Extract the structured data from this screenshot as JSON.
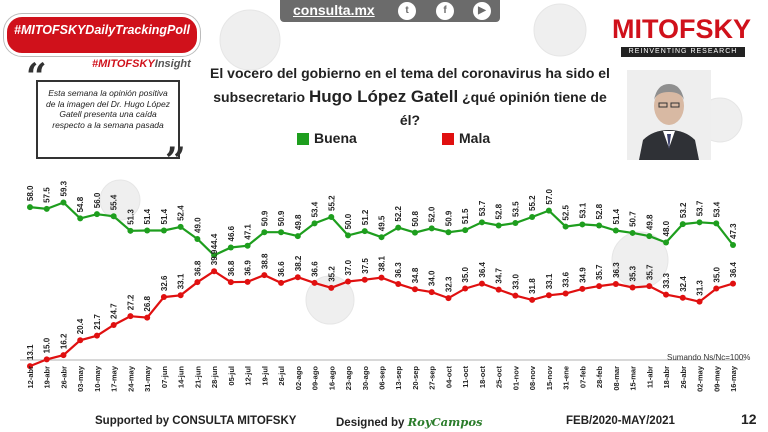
{
  "header": {
    "site": "consulta.mx",
    "social": [
      "twitter-icon",
      "facebook-icon",
      "youtube-icon"
    ],
    "tag": "#MITOFSKYDailyTrackingPoll",
    "insight_prefix": "#MITOFSKY",
    "insight_suffix": "Insight",
    "logo": "MITOFSKY",
    "logo_sub": "REINVENTING RESEARCH"
  },
  "quote": "Esta semana la opinión positiva de la imagen del Dr. Hugo López Gatell presenta una caída respecto a la semana pasada",
  "title_line1": "El vocero del gobierno en el tema del coronavirus ha sido el",
  "title_line2_prefix": "subsecretario ",
  "title_line2_name": "Hugo López Gatell",
  "title_line2_suffix": " ¿qué opinión tiene de él?",
  "note": "Sumando Ns/Nc=100%",
  "footer": {
    "supported": "Supported by   CONSULTA   MITOFSKY",
    "designed": "Designed by",
    "designer": "RoyCampos",
    "range": "FEB/2020-MAY/2021",
    "page": "12"
  },
  "colors": {
    "buena": "#1e9e1e",
    "mala": "#e01010",
    "brand": "#d0111b"
  },
  "chart_data": {
    "type": "line",
    "title": "",
    "xlabel": "",
    "ylabel": "",
    "grid": false,
    "legend_placement": "top-left",
    "x": [
      "12-abr",
      "19-abr",
      "26-abr",
      "03-may",
      "10-may",
      "17-may",
      "24-may",
      "31-may",
      "07-jun",
      "14-jun",
      "21-jun",
      "28-jun",
      "05-jul",
      "12-jul",
      "19-jul",
      "26-jul",
      "02-ago",
      "09-ago",
      "16-ago",
      "23-ago",
      "30-ago",
      "06-sep",
      "13-sep",
      "20-sep",
      "27-sep",
      "04-oct",
      "11-oct",
      "18-oct",
      "25-oct",
      "01-nov",
      "08-nov",
      "15-nov",
      "31-ene",
      "07-feb",
      "28-feb",
      "08-mar",
      "15-mar",
      "11-abr",
      "18-abr",
      "26-abr",
      "02-may",
      "09-may",
      "16-may"
    ],
    "series": [
      {
        "name": "Buena",
        "values": [
          58.0,
          57.5,
          59.3,
          54.8,
          56.0,
          55.4,
          51.3,
          51.4,
          51.4,
          52.4,
          49.0,
          44.4,
          46.6,
          47.1,
          50.9,
          50.9,
          49.8,
          53.4,
          55.2,
          50.0,
          51.2,
          49.5,
          52.2,
          50.8,
          52.0,
          50.9,
          51.5,
          53.7,
          52.8,
          53.5,
          55.2,
          57.0,
          52.5,
          53.1,
          52.8,
          51.4,
          50.7,
          49.8,
          48.0,
          53.2,
          53.7,
          53.4,
          47.3
        ]
      },
      {
        "name": "Mala",
        "values": [
          13.1,
          15.0,
          16.2,
          20.4,
          21.7,
          24.7,
          27.2,
          26.8,
          32.6,
          33.1,
          36.8,
          39.9,
          36.8,
          36.9,
          38.8,
          36.6,
          38.2,
          36.6,
          35.2,
          37.0,
          37.5,
          38.1,
          36.3,
          34.8,
          34.0,
          32.3,
          35.0,
          36.4,
          34.7,
          33.0,
          31.8,
          33.1,
          33.6,
          34.9,
          35.7,
          36.3,
          35.3,
          35.7,
          33.3,
          32.4,
          31.3,
          35.0,
          36.4
        ]
      }
    ]
  }
}
